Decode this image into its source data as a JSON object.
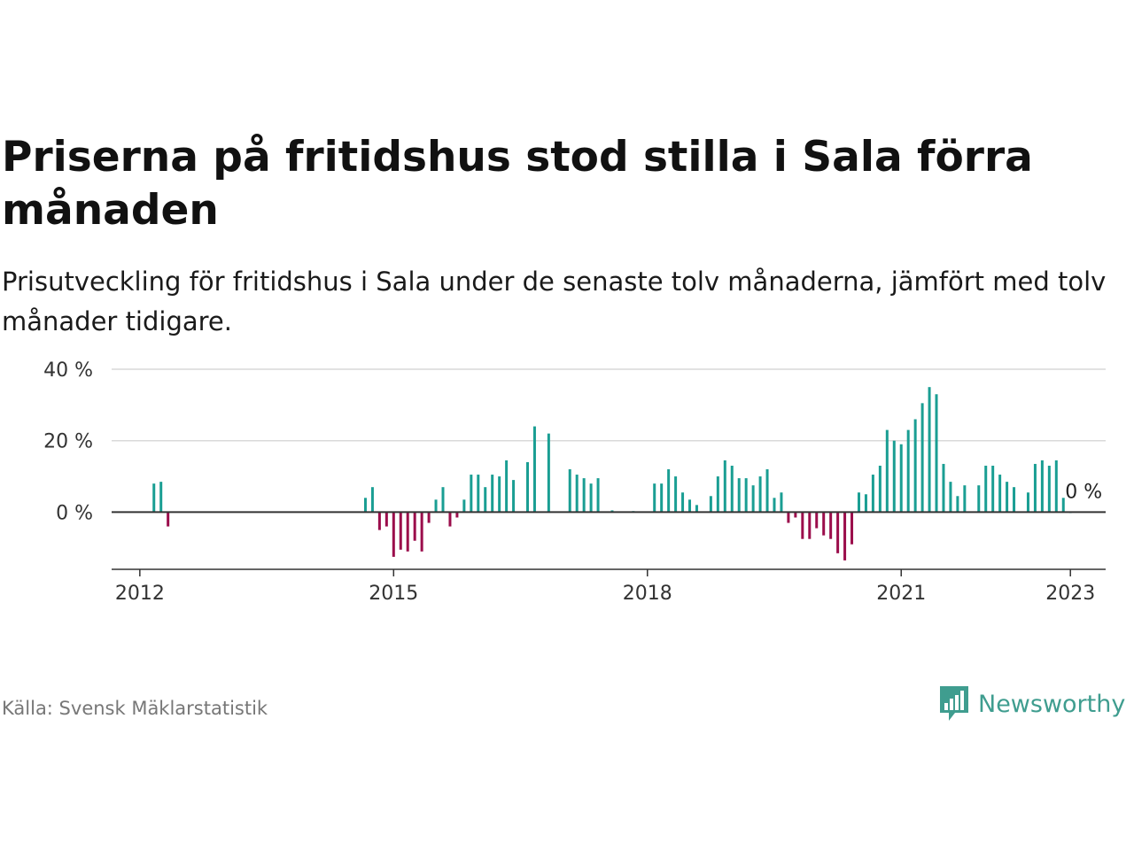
{
  "title": "Priserna på fritidshus stod stilla i Sala förra månaden",
  "subtitle": "Prisutveckling för fritidshus i Sala under de senaste tolv månaderna, jämfört med tolv månader tidigare.",
  "source": "Källa: Svensk Mäklarstatistik",
  "logo": {
    "text": "Newsworthy",
    "icon": "bar-chart-speech-bubble-icon"
  },
  "colors": {
    "positive": "#1a9e93",
    "negative": "#9b0d4b",
    "grid": "#d9d9d9",
    "axis": "#333333",
    "brand": "#3f9d8f"
  },
  "chart_data": {
    "type": "bar",
    "x_unit": "month",
    "y_unit": "%",
    "ylim": [
      -16,
      40
    ],
    "y_ticks": [
      {
        "value": 0,
        "label": "0 %"
      },
      {
        "value": 20,
        "label": "20 %"
      },
      {
        "value": 40,
        "label": "40 %"
      }
    ],
    "x_ticks": [
      {
        "value": "2012-01",
        "label": "2012"
      },
      {
        "value": "2015-01",
        "label": "2015"
      },
      {
        "value": "2018-01",
        "label": "2018"
      },
      {
        "value": "2021-01",
        "label": "2021"
      },
      {
        "value": "2023-01",
        "label": "2023"
      }
    ],
    "xlim": [
      "2011-09",
      "2023-06"
    ],
    "grid": true,
    "last_value_label": "0 %",
    "series": [
      {
        "values": [
          [
            "2012-03",
            8
          ],
          [
            "2012-04",
            8.5
          ],
          [
            "2012-05",
            -4
          ],
          [
            "2014-09",
            4
          ],
          [
            "2014-10",
            7
          ],
          [
            "2014-11",
            -5
          ],
          [
            "2014-12",
            -4
          ],
          [
            "2015-01",
            -12.5
          ],
          [
            "2015-02",
            -10.5
          ],
          [
            "2015-03",
            -11
          ],
          [
            "2015-04",
            -8
          ],
          [
            "2015-05",
            -11
          ],
          [
            "2015-06",
            -3
          ],
          [
            "2015-07",
            3.5
          ],
          [
            "2015-08",
            7
          ],
          [
            "2015-09",
            -4
          ],
          [
            "2015-10",
            -1.5
          ],
          [
            "2015-11",
            3.5
          ],
          [
            "2015-12",
            10.5
          ],
          [
            "2016-01",
            10.5
          ],
          [
            "2016-02",
            7
          ],
          [
            "2016-03",
            10.5
          ],
          [
            "2016-04",
            10
          ],
          [
            "2016-05",
            14.5
          ],
          [
            "2016-06",
            9
          ],
          [
            "2016-08",
            14
          ],
          [
            "2016-09",
            24
          ],
          [
            "2016-11",
            22
          ],
          [
            "2017-02",
            12
          ],
          [
            "2017-03",
            10.5
          ],
          [
            "2017-04",
            9.5
          ],
          [
            "2017-05",
            8
          ],
          [
            "2017-06",
            9.5
          ],
          [
            "2017-08",
            0.5
          ],
          [
            "2017-11",
            0.3
          ],
          [
            "2018-02",
            8
          ],
          [
            "2018-03",
            8
          ],
          [
            "2018-04",
            12
          ],
          [
            "2018-05",
            10
          ],
          [
            "2018-06",
            5.5
          ],
          [
            "2018-07",
            3.5
          ],
          [
            "2018-08",
            2
          ],
          [
            "2018-10",
            4.5
          ],
          [
            "2018-11",
            10
          ],
          [
            "2018-12",
            14.5
          ],
          [
            "2019-01",
            13
          ],
          [
            "2019-02",
            9.5
          ],
          [
            "2019-03",
            9.5
          ],
          [
            "2019-04",
            7.5
          ],
          [
            "2019-05",
            10
          ],
          [
            "2019-06",
            12
          ],
          [
            "2019-07",
            4
          ],
          [
            "2019-08",
            5.5
          ],
          [
            "2019-09",
            -3
          ],
          [
            "2019-10",
            -1.5
          ],
          [
            "2019-11",
            -7.5
          ],
          [
            "2019-12",
            -7.5
          ],
          [
            "2020-01",
            -4.5
          ],
          [
            "2020-02",
            -6.5
          ],
          [
            "2020-03",
            -7.5
          ],
          [
            "2020-04",
            -11.5
          ],
          [
            "2020-05",
            -13.5
          ],
          [
            "2020-06",
            -9
          ],
          [
            "2020-07",
            5.5
          ],
          [
            "2020-08",
            5
          ],
          [
            "2020-09",
            10.5
          ],
          [
            "2020-10",
            13
          ],
          [
            "2020-11",
            23
          ],
          [
            "2020-12",
            20
          ],
          [
            "2021-01",
            19
          ],
          [
            "2021-02",
            23
          ],
          [
            "2021-03",
            26
          ],
          [
            "2021-04",
            30.5
          ],
          [
            "2021-05",
            35
          ],
          [
            "2021-06",
            33
          ],
          [
            "2021-07",
            13.5
          ],
          [
            "2021-08",
            8.5
          ],
          [
            "2021-09",
            4.5
          ],
          [
            "2021-10",
            7.5
          ],
          [
            "2021-12",
            7.5
          ],
          [
            "2022-01",
            13
          ],
          [
            "2022-02",
            13
          ],
          [
            "2022-03",
            10.5
          ],
          [
            "2022-04",
            8.5
          ],
          [
            "2022-05",
            7
          ],
          [
            "2022-07",
            5.5
          ],
          [
            "2022-08",
            13.5
          ],
          [
            "2022-09",
            14.5
          ],
          [
            "2022-10",
            13
          ],
          [
            "2022-11",
            14.5
          ],
          [
            "2022-12",
            4
          ],
          [
            "2023-01",
            0
          ]
        ]
      }
    ]
  }
}
